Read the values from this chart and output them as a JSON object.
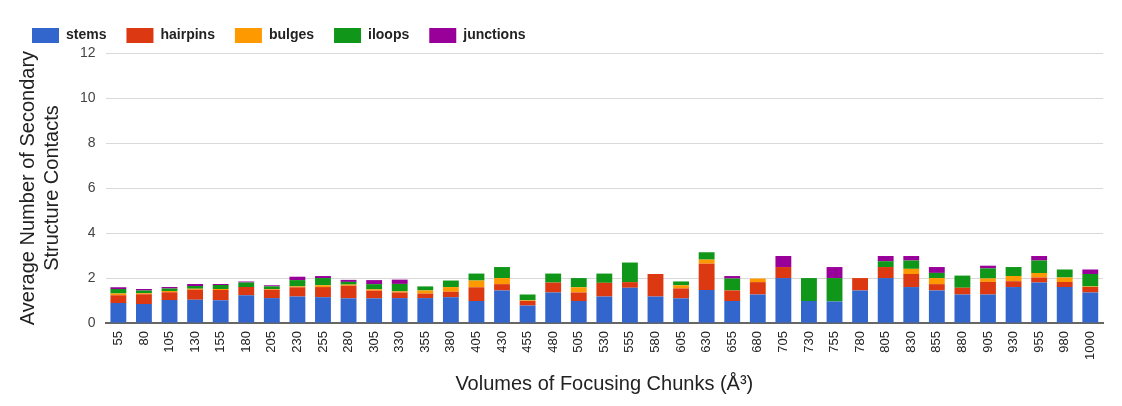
{
  "chart_data": {
    "type": "bar",
    "stacked": true,
    "xlabel": "Volumes of Focusing Chunks (Å³)",
    "ylabel": "Average Number of Secondary Structure Contacts",
    "categories": [
      "55",
      "80",
      "105",
      "130",
      "155",
      "180",
      "205",
      "230",
      "255",
      "280",
      "305",
      "330",
      "355",
      "380",
      "405",
      "430",
      "455",
      "480",
      "505",
      "530",
      "555",
      "580",
      "605",
      "630",
      "655",
      "680",
      "705",
      "730",
      "755",
      "780",
      "805",
      "830",
      "855",
      "880",
      "905",
      "930",
      "955",
      "980",
      "1000"
    ],
    "series": [
      {
        "name": "stems",
        "color": "#3366cc",
        "values": [
          0.89,
          0.85,
          1.02,
          1.04,
          1.01,
          1.24,
          1.11,
          1.18,
          1.15,
          1.1,
          1.1,
          1.11,
          1.11,
          1.15,
          0.98,
          1.45,
          0.78,
          1.36,
          0.98,
          1.18,
          1.57,
          1.18,
          1.1,
          1.47,
          0.98,
          1.27,
          2.0,
          0.98,
          0.96,
          1.45,
          2.0,
          1.6,
          1.45,
          1.27,
          1.27,
          1.6,
          1.8,
          1.6,
          1.36
        ]
      },
      {
        "name": "hairpins",
        "color": "#dc3912",
        "values": [
          0.35,
          0.43,
          0.35,
          0.44,
          0.46,
          0.36,
          0.37,
          0.41,
          0.45,
          0.56,
          0.34,
          0.25,
          0.2,
          0.24,
          0.61,
          0.28,
          0.2,
          0.44,
          0.38,
          0.61,
          0.25,
          1.0,
          0.44,
          1.17,
          0.47,
          0.55,
          0.49,
          0,
          0,
          0.55,
          0.49,
          0.58,
          0.28,
          0.3,
          0.56,
          0.26,
          0.22,
          0.23,
          0.24
        ]
      },
      {
        "name": "bulges",
        "color": "#ff9900",
        "values": [
          0.07,
          0.05,
          0.05,
          0.05,
          0.04,
          0,
          0.03,
          0.04,
          0.08,
          0.05,
          0.06,
          0.05,
          0.14,
          0.21,
          0.3,
          0.27,
          0.03,
          0,
          0.23,
          0,
          0,
          0,
          0.14,
          0.18,
          0,
          0.16,
          0,
          0,
          0,
          0,
          0,
          0.23,
          0.27,
          0,
          0.15,
          0.23,
          0.21,
          0.19,
          0.03
        ]
      },
      {
        "name": "iloops",
        "color": "#109618",
        "values": [
          0.2,
          0.12,
          0.12,
          0.12,
          0.18,
          0.2,
          0.12,
          0.28,
          0.32,
          0.12,
          0.23,
          0.33,
          0.18,
          0.29,
          0.31,
          0.49,
          0.26,
          0.4,
          0.41,
          0.41,
          0.87,
          0,
          0.17,
          0.33,
          0.53,
          0,
          0,
          1.02,
          1.04,
          0,
          0.26,
          0.37,
          0.23,
          0.54,
          0.45,
          0.4,
          0.55,
          0.36,
          0.55
        ]
      },
      {
        "name": "junctions",
        "color": "#990099",
        "values": [
          0.08,
          0.06,
          0.06,
          0.09,
          0.05,
          0.05,
          0.05,
          0.15,
          0.09,
          0.09,
          0.18,
          0.19,
          0,
          0,
          0,
          0,
          0,
          0,
          0,
          0,
          0,
          0,
          0,
          0,
          0.11,
          0,
          0.49,
          0,
          0.49,
          0,
          0.23,
          0.2,
          0.26,
          0,
          0.12,
          0,
          0.2,
          0,
          0.2
        ]
      }
    ],
    "ylim": [
      0,
      12
    ],
    "yticks": [
      0,
      2,
      4,
      6,
      8,
      10,
      12
    ],
    "grid": "y",
    "legend": "top left"
  }
}
